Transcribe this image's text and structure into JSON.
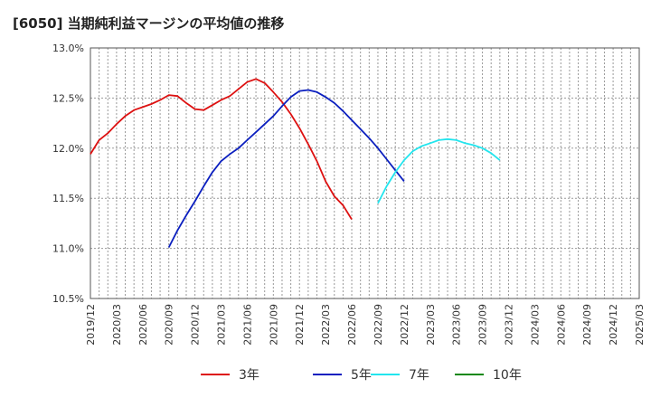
{
  "chart_data": {
    "type": "line",
    "title": "[6050]  当期純利益マージンの平均値の推移",
    "xlabel": "",
    "ylabel": "",
    "ylim": [
      10.5,
      13.0
    ],
    "yticks": [
      "10.5%",
      "11.0%",
      "11.5%",
      "12.0%",
      "12.5%",
      "13.0%"
    ],
    "ytick_values": [
      10.5,
      11.0,
      11.5,
      12.0,
      12.5,
      13.0
    ],
    "xticks": [
      "2019/12",
      "2020/03",
      "2020/06",
      "2020/09",
      "2020/12",
      "2021/03",
      "2021/06",
      "2021/09",
      "2021/12",
      "2022/03",
      "2022/06",
      "2022/09",
      "2022/12",
      "2023/03",
      "2023/06",
      "2023/09",
      "2023/12",
      "2024/03",
      "2024/06",
      "2024/09",
      "2024/12",
      "2025/03"
    ],
    "grid": true,
    "legend_position": "bottom",
    "series": [
      {
        "name": "3年",
        "color": "#dd1111",
        "start": "2019/12",
        "values": [
          11.94,
          12.08,
          12.15,
          12.24,
          12.32,
          12.38,
          12.41,
          12.44,
          12.48,
          12.53,
          12.52,
          12.45,
          12.39,
          12.38,
          12.43,
          12.48,
          12.52,
          12.59,
          12.66,
          12.69,
          12.65,
          12.56,
          12.46,
          12.34,
          12.2,
          12.04,
          11.87,
          11.67,
          11.52,
          11.43,
          11.29
        ]
      },
      {
        "name": "5年",
        "color": "#0b1fbf",
        "start": "2020/09",
        "values": [
          11.01,
          11.18,
          11.33,
          11.47,
          11.62,
          11.76,
          11.87,
          11.94,
          12.0,
          12.08,
          12.16,
          12.24,
          12.32,
          12.42,
          12.51,
          12.57,
          12.58,
          12.56,
          12.51,
          12.45,
          12.37,
          12.28,
          12.19,
          12.1,
          12.0,
          11.89,
          11.78,
          11.67
        ]
      },
      {
        "name": "7年",
        "color": "#22e5ee",
        "start": "2022/09",
        "values": [
          11.45,
          11.62,
          11.76,
          11.88,
          11.97,
          12.02,
          12.05,
          12.08,
          12.09,
          12.08,
          12.05,
          12.03,
          12.0,
          11.95,
          11.88
        ]
      },
      {
        "name": "10年",
        "color": "#118811",
        "start": "2019/12",
        "values": []
      }
    ]
  }
}
